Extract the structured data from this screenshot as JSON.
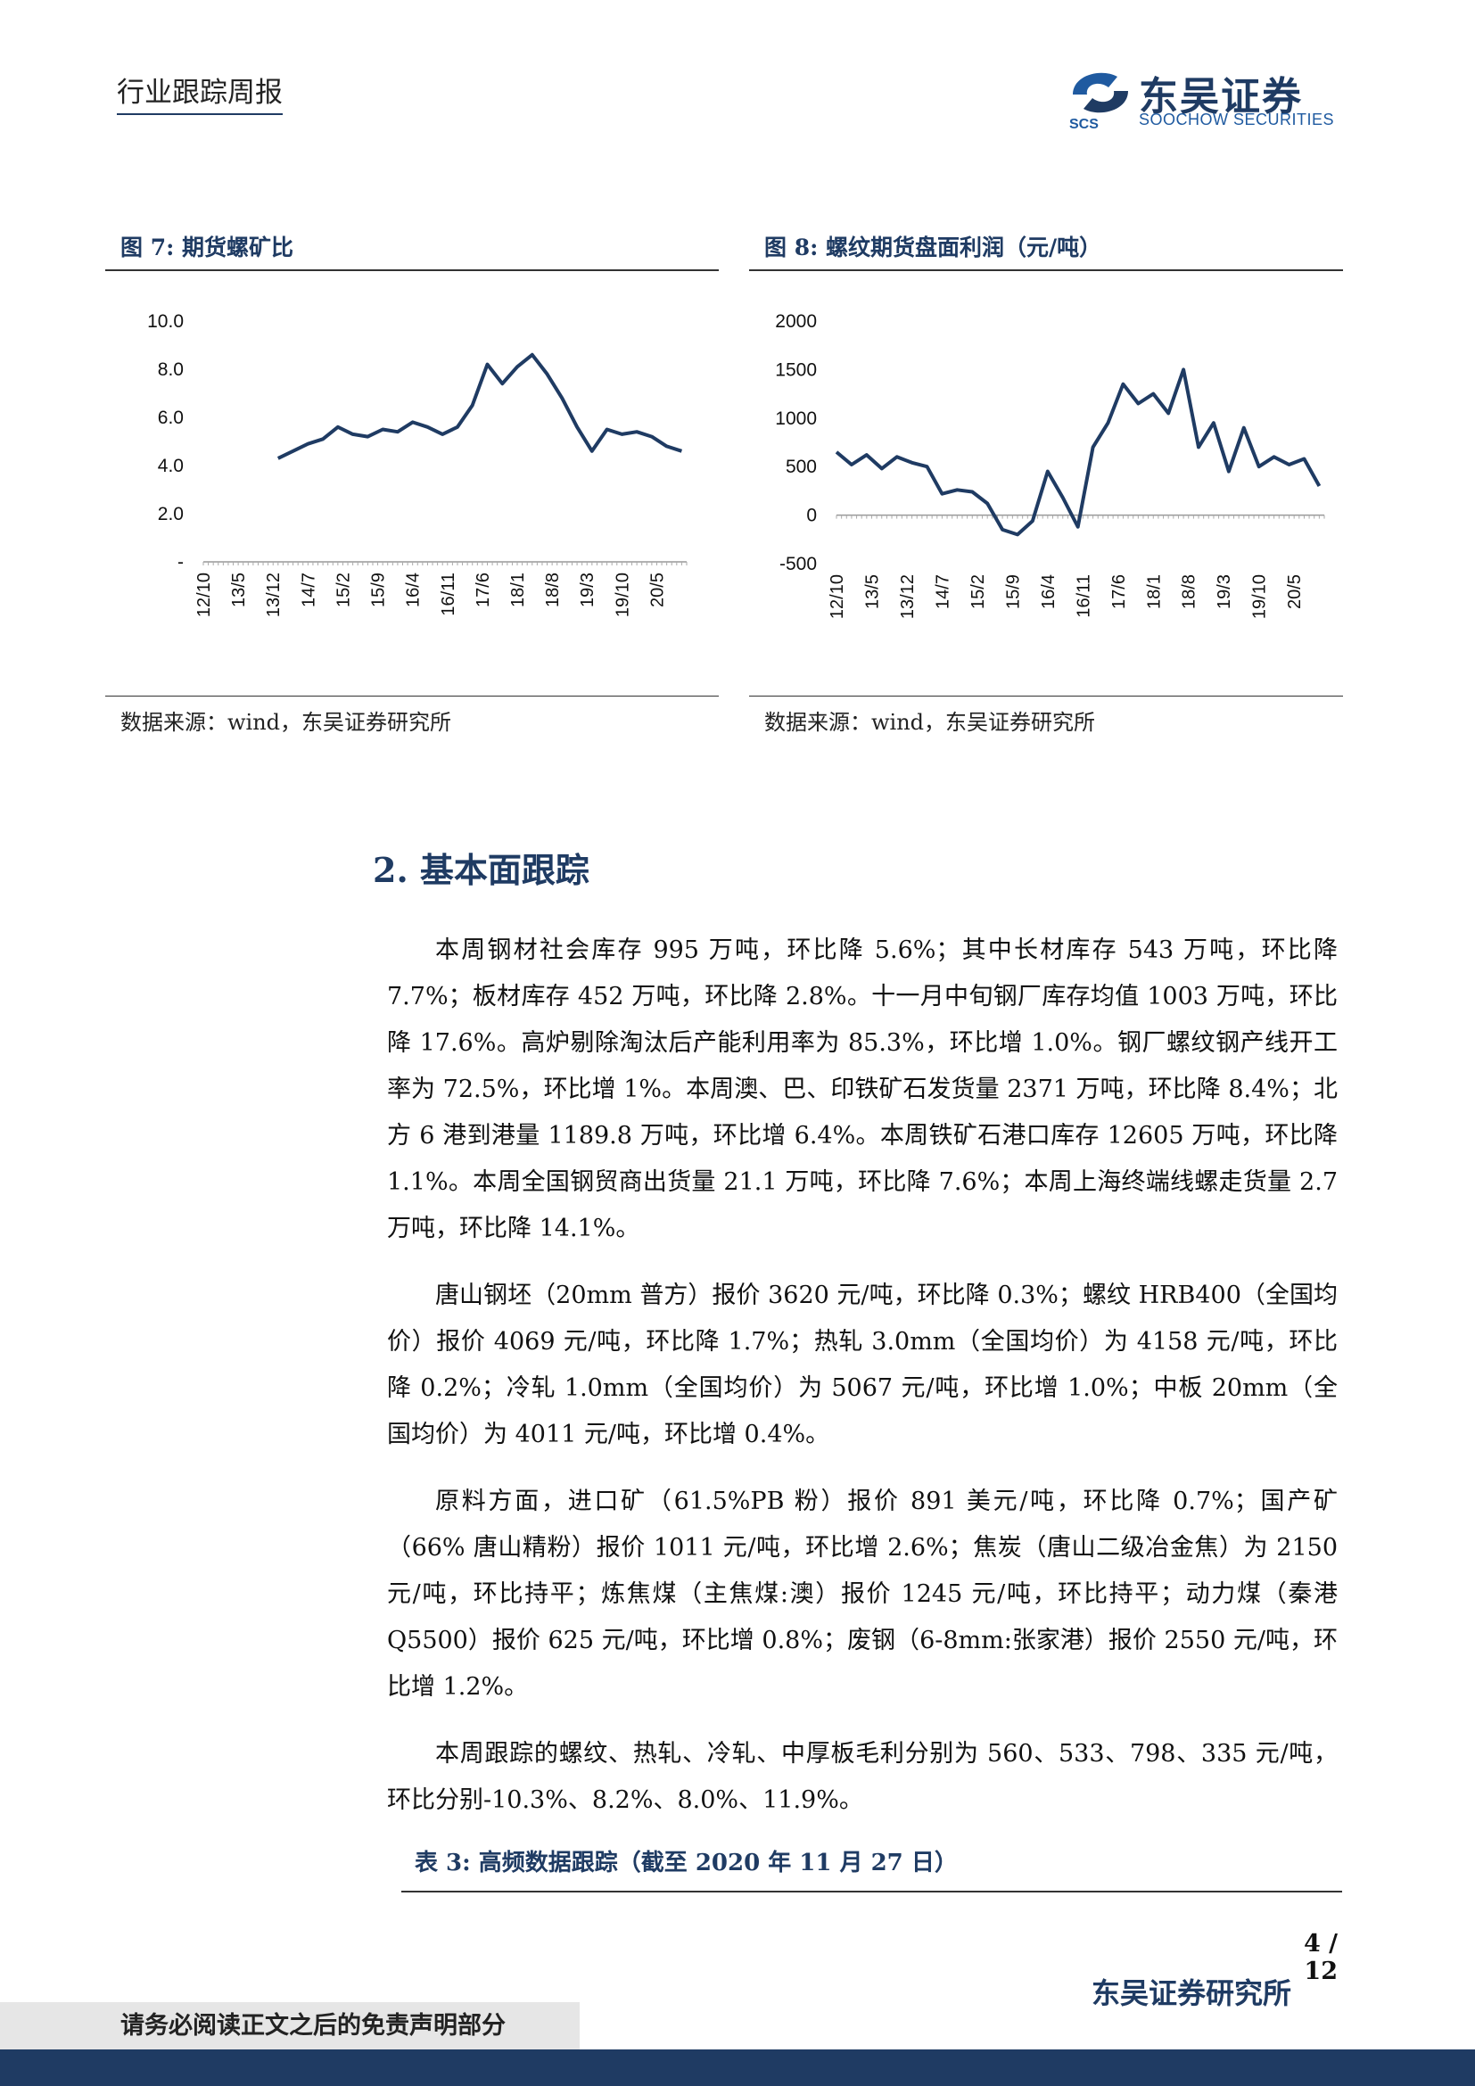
{
  "header": {
    "title": "行业跟踪周报",
    "logo_cn": "东吴证券",
    "logo_en": "SOOCHOW SECURITIES",
    "logo_mark": "SCS"
  },
  "figures": [
    {
      "title": "图 7:  期货螺矿比",
      "source": "数据来源：wind，东吴证券研究所",
      "chart_data": {
        "type": "line",
        "title": "",
        "xlabel": "",
        "ylabel": "",
        "ylim": [
          0,
          10
        ],
        "yticks": [
          "10.0",
          "8.0",
          "6.0",
          "4.0",
          "2.0",
          "-"
        ],
        "xticks": [
          "12/10",
          "13/5",
          "13/12",
          "14/7",
          "15/2",
          "15/9",
          "16/4",
          "16/11",
          "17/6",
          "18/1",
          "18/8",
          "19/3",
          "19/10",
          "20/5"
        ],
        "x": [
          "14/1",
          "14/4",
          "14/7",
          "14/10",
          "15/1",
          "15/4",
          "15/7",
          "15/10",
          "16/1",
          "16/4",
          "16/7",
          "16/10",
          "17/1",
          "17/4",
          "17/7",
          "17/10",
          "18/1",
          "18/4",
          "18/7",
          "18/10",
          "19/1",
          "19/4",
          "19/7",
          "19/10",
          "20/1",
          "20/4",
          "20/7",
          "20/10"
        ],
        "series": [
          {
            "values": [
              4.3,
              4.6,
              4.9,
              5.1,
              5.6,
              5.3,
              5.2,
              5.5,
              5.4,
              5.8,
              5.6,
              5.3,
              5.6,
              6.5,
              8.2,
              7.4,
              8.1,
              8.6,
              7.8,
              6.8,
              5.6,
              4.6,
              5.5,
              5.3,
              5.4,
              5.2,
              4.8,
              4.6
            ]
          }
        ],
        "grid": false
      }
    },
    {
      "title": "图 8:  螺纹期货盘面利润（元/吨）",
      "source": "数据来源：wind，东吴证券研究所",
      "chart_data": {
        "type": "line",
        "title": "",
        "xlabel": "",
        "ylabel": "",
        "ylim": [
          -500,
          2000
        ],
        "yticks": [
          "2000",
          "1500",
          "1000",
          "500",
          "0",
          "-500"
        ],
        "xticks": [
          "12/10",
          "13/5",
          "13/12",
          "14/7",
          "15/2",
          "15/9",
          "16/4",
          "16/11",
          "17/6",
          "18/1",
          "18/8",
          "19/3",
          "19/10",
          "20/5"
        ],
        "x": [
          "12/10",
          "13/1",
          "13/4",
          "13/7",
          "13/10",
          "14/1",
          "14/4",
          "14/7",
          "14/10",
          "15/1",
          "15/4",
          "15/7",
          "15/10",
          "16/1",
          "16/4",
          "16/7",
          "16/10",
          "17/1",
          "17/4",
          "17/7",
          "17/10",
          "18/1",
          "18/4",
          "18/7",
          "18/10",
          "19/1",
          "19/4",
          "19/7",
          "19/10",
          "20/1",
          "20/4",
          "20/7",
          "20/10"
        ],
        "series": [
          {
            "values": [
              650,
              520,
              620,
              480,
              600,
              540,
              500,
              220,
              260,
              240,
              120,
              -150,
              -200,
              -60,
              450,
              180,
              -120,
              700,
              950,
              1350,
              1150,
              1250,
              1050,
              1500,
              700,
              950,
              450,
              900,
              500,
              600,
              520,
              580,
              300
            ]
          }
        ],
        "grid": false
      }
    }
  ],
  "section": {
    "title": "2. 基本面跟踪",
    "paragraphs": [
      "本周钢材社会库存 995 万吨，环比降 5.6%；其中长材库存 543 万吨，环比降 7.7%；板材库存 452 万吨，环比降 2.8%。十一月中旬钢厂库存均值 1003 万吨，环比降 17.6%。高炉剔除淘汰后产能利用率为 85.3%，环比增 1.0%。钢厂螺纹钢产线开工率为 72.5%，环比增 1%。本周澳、巴、印铁矿石发货量 2371 万吨，环比降 8.4%；北方 6 港到港量 1189.8 万吨，环比增 6.4%。本周铁矿石港口库存 12605 万吨，环比降 1.1%。本周全国钢贸商出货量 21.1 万吨，环比降 7.6%；本周上海终端线螺走货量 2.7 万吨，环比降 14.1%。",
      "唐山钢坯（20mm 普方）报价 3620 元/吨，环比降 0.3%；螺纹 HRB400（全国均价）报价 4069 元/吨，环比降 1.7%；热轧 3.0mm（全国均价）为 4158 元/吨，环比降 0.2%；冷轧 1.0mm（全国均价）为 5067 元/吨，环比增 1.0%；中板 20mm（全国均价）为 4011 元/吨，环比增 0.4%。",
      "原料方面，进口矿（61.5%PB 粉）报价 891 美元/吨，环比降 0.7%；国产矿（66% 唐山精粉）报价 1011 元/吨，环比增 2.6%；焦炭（唐山二级冶金焦）为 2150 元/吨，环比持平；炼焦煤（主焦煤:澳）报价 1245 元/吨，环比持平；动力煤（秦港 Q5500）报价 625 元/吨，环比增 0.8%；废钢（6-8mm:张家港）报价 2550 元/吨，环比增 1.2%。",
      "本周跟踪的螺纹、热轧、冷轧、中厚板毛利分别为 560、533、798、335 元/吨，环比分别-10.3%、8.2%、8.0%、11.9%。"
    ]
  },
  "table": {
    "title": "表 3:  高频数据跟踪（截至 2020 年 11 月 27 日）"
  },
  "footer": {
    "page": "4 / 12",
    "institution": "东吴证券研究所",
    "disclaimer": "请务必阅读正文之后的免责声明部分"
  },
  "colors": {
    "navy": "#1f3b63",
    "line": "#1f3b63"
  }
}
